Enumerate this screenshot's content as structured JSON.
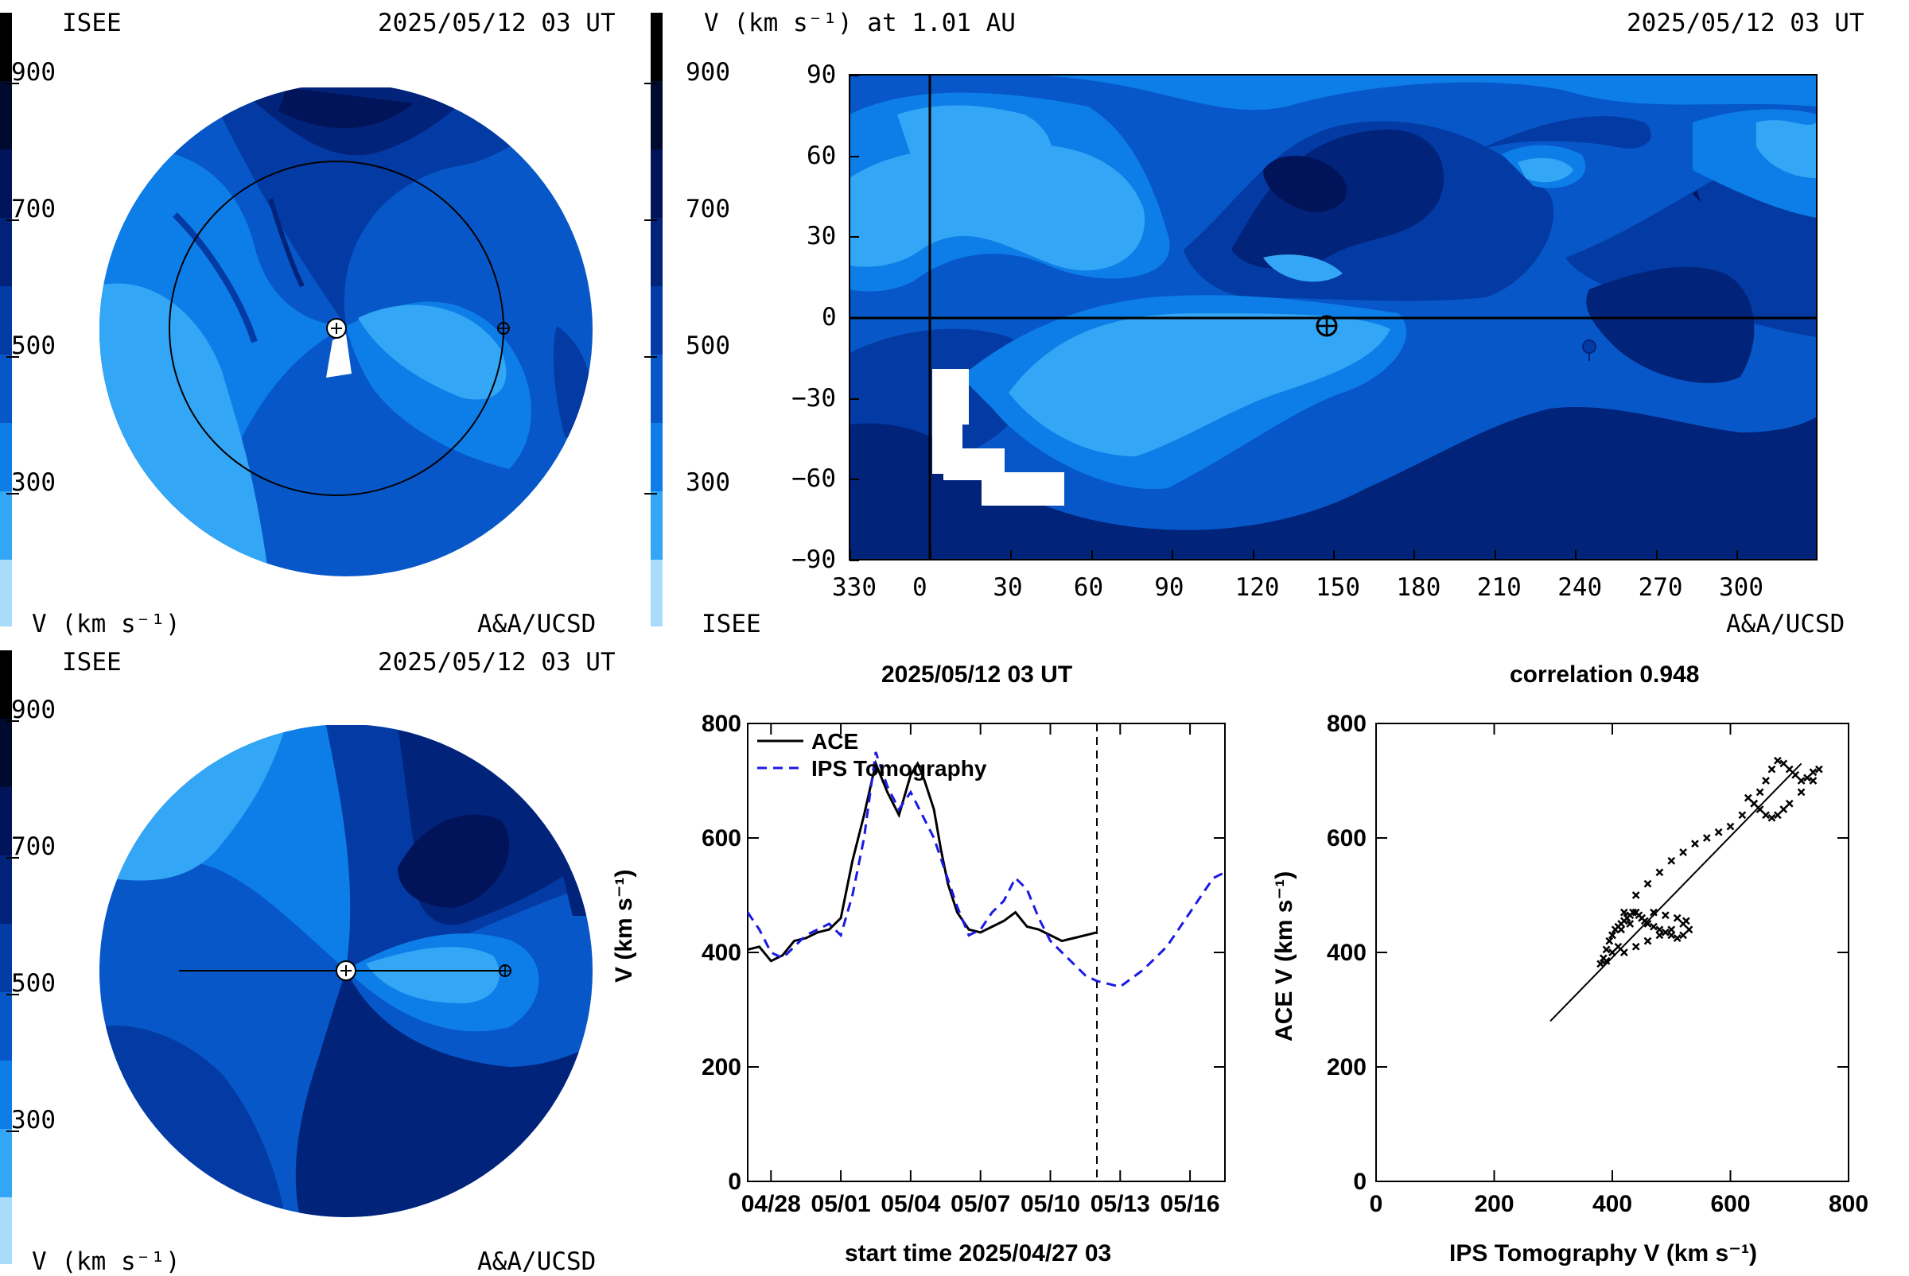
{
  "colors": {
    "scale": [
      "#a8dcfa",
      "#33a6f5",
      "#0d7ee8",
      "#0757c8",
      "#033aa3",
      "#02237a",
      "#01145a",
      "#000a2e",
      "#000000"
    ]
  },
  "top_left": {
    "org": "ISEE",
    "time": "2025/05/12 03 UT",
    "colorbar_ticks": [
      "900",
      "700",
      "500",
      "300"
    ],
    "unit": "V (km s⁻¹)",
    "credit": "A&A/UCSD"
  },
  "top_right": {
    "title": "V (km s⁻¹) at 1.01 AU",
    "time": "2025/05/12 03 UT",
    "colorbar_ticks": [
      "900",
      "700",
      "500",
      "300"
    ],
    "org": "ISEE",
    "credit": "A&A/UCSD",
    "x_ticks": [
      "330",
      "0",
      "30",
      "60",
      "90",
      "120",
      "150",
      "180",
      "210",
      "240",
      "270",
      "300"
    ],
    "y_ticks": [
      "90",
      "60",
      "30",
      "0",
      "−30",
      "−60",
      "−90"
    ]
  },
  "bottom_left": {
    "org": "ISEE",
    "time": "2025/05/12 03 UT",
    "colorbar_ticks": [
      "900",
      "700",
      "500",
      "300"
    ],
    "unit": "V (km s⁻¹)",
    "credit": "A&A/UCSD"
  },
  "chart_data": [
    {
      "type": "line",
      "title": "2025/05/12 03 UT",
      "xlabel": "start time 2025/04/27 03",
      "ylabel": "V (km s⁻¹)",
      "x_tick_labels": [
        "04/28",
        "05/01",
        "05/04",
        "05/07",
        "05/10",
        "05/13",
        "05/16"
      ],
      "y_tick_labels": [
        "0",
        "200",
        "400",
        "600",
        "800"
      ],
      "xlim": [
        0,
        20.5
      ],
      "ylim": [
        0,
        800
      ],
      "series": [
        {
          "name": "ACE",
          "color": "#000000",
          "dash": "none",
          "x": [
            0,
            0.5,
            1,
            1.5,
            2,
            2.5,
            3,
            3.5,
            4,
            4.5,
            5,
            5.5,
            6,
            6.5,
            7,
            7.3,
            7.6,
            8,
            8.3,
            8.6,
            9,
            9.5,
            10,
            10.5,
            11,
            11.5,
            12,
            12.5,
            13,
            13.5,
            14,
            14.5,
            15
          ],
          "y": [
            405,
            410,
            385,
            395,
            420,
            425,
            435,
            440,
            460,
            560,
            640,
            730,
            680,
            640,
            710,
            730,
            700,
            650,
            580,
            520,
            470,
            440,
            435,
            445,
            455,
            470,
            445,
            440,
            430,
            420,
            425,
            430,
            435
          ]
        },
        {
          "name": "IPS Tomography",
          "color": "#1a1ae6",
          "dash": "12,8",
          "x": [
            0,
            0.5,
            1,
            1.5,
            2,
            2.5,
            3,
            3.5,
            4,
            4.5,
            5,
            5.5,
            6,
            6.5,
            7,
            7.5,
            8,
            8.5,
            9,
            9.5,
            10,
            10.5,
            11,
            11.5,
            12,
            12.5,
            13,
            13.5,
            14,
            14.5,
            15,
            15.5,
            16,
            16.5,
            17,
            17.5,
            18,
            18.5,
            19,
            19.5,
            20,
            20.5
          ],
          "y": [
            470,
            440,
            400,
            390,
            410,
            430,
            440,
            450,
            430,
            500,
            600,
            750,
            690,
            650,
            680,
            640,
            600,
            540,
            480,
            430,
            440,
            470,
            490,
            530,
            510,
            460,
            420,
            400,
            380,
            360,
            350,
            345,
            340,
            355,
            370,
            390,
            410,
            440,
            470,
            500,
            530,
            540
          ]
        }
      ],
      "vline_x": 15,
      "legend": "top-left"
    },
    {
      "type": "scatter",
      "title": "correlation 0.948",
      "xlabel": "IPS Tomography V (km s⁻¹)",
      "ylabel": "ACE V (km s⁻¹)",
      "x_tick_labels": [
        "0",
        "200",
        "400",
        "600",
        "800"
      ],
      "y_tick_labels": [
        "0",
        "200",
        "400",
        "600",
        "800"
      ],
      "xlim": [
        0,
        800
      ],
      "ylim": [
        0,
        800
      ],
      "fit_line": {
        "x": [
          295,
          720
        ],
        "y": [
          280,
          730
        ]
      },
      "points": {
        "x": [
          385,
          390,
          395,
          400,
          405,
          410,
          415,
          420,
          425,
          430,
          435,
          440,
          445,
          450,
          455,
          460,
          470,
          480,
          490,
          500,
          510,
          520,
          530,
          525,
          510,
          490,
          470,
          450,
          430,
          415,
          400,
          420,
          440,
          460,
          480,
          500,
          520,
          540,
          560,
          580,
          600,
          620,
          640,
          650,
          660,
          670,
          680,
          690,
          700,
          710,
          720,
          730,
          740,
          750,
          740,
          720,
          700,
          690,
          680,
          670,
          660,
          650,
          640,
          630,
          420,
          440,
          460,
          480,
          500,
          520,
          380,
          390,
          400,
          410
        ],
        "y": [
          390,
          405,
          420,
          430,
          440,
          445,
          450,
          455,
          460,
          465,
          470,
          470,
          465,
          460,
          455,
          450,
          445,
          440,
          435,
          430,
          425,
          430,
          440,
          455,
          460,
          465,
          470,
          460,
          450,
          440,
          430,
          470,
          500,
          520,
          540,
          560,
          575,
          590,
          600,
          610,
          620,
          640,
          660,
          680,
          700,
          720,
          735,
          730,
          720,
          710,
          700,
          705,
          715,
          720,
          700,
          680,
          660,
          650,
          640,
          635,
          640,
          650,
          660,
          670,
          400,
          410,
          420,
          430,
          440,
          450,
          380,
          385,
          400,
          410
        ]
      }
    }
  ]
}
